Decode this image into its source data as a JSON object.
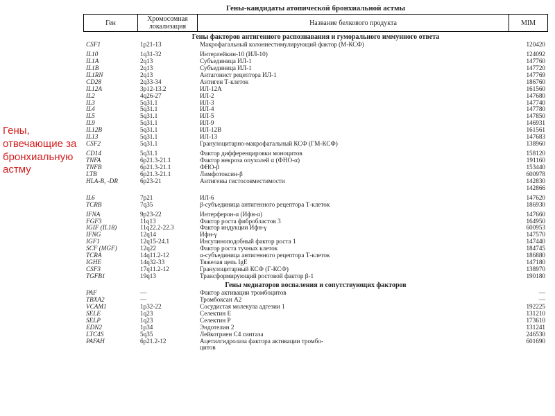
{
  "sideLabel": "Гены, отвечающие за бронхиальную астму",
  "title": "Гены-кандидаты атопической бронхиальной астмы",
  "headers": {
    "gene": "Ген",
    "loc": "Хромосомная локализация",
    "prod": "Название белкового продукта",
    "mim": "MIM"
  },
  "sections": [
    {
      "title": "Гены факторов антигенного распознавания и гуморального иммунного ответа",
      "groups": [
        [
          {
            "gene": "CSF1",
            "loc": "1p21-13",
            "prod": "Макрофагальный колониестимулирующий фактор (М-КСФ)",
            "mim": "120420"
          }
        ],
        [
          {
            "gene": "IL10",
            "loc": "1q31-32",
            "prod": "Интерлейкин-10 (ИЛ-10)",
            "mim": "124092"
          },
          {
            "gene": "IL1A",
            "loc": "2q13",
            "prod": "Субъединица ИЛ-1",
            "mim": "147760"
          },
          {
            "gene": "IL1B",
            "loc": "2q13",
            "prod": "Субъединица ИЛ-1",
            "mim": "147720"
          },
          {
            "gene": "IL1RN",
            "loc": "2q13",
            "prod": "Антагонист рецептора ИЛ-1",
            "mim": "147769"
          },
          {
            "gene": "CD28",
            "loc": "2q33-34",
            "prod": "Антиген Т-клеток",
            "mim": "186760"
          },
          {
            "gene": "IL12A",
            "loc": "3p12-13.2",
            "prod": "ИЛ-12А",
            "mim": "161560"
          },
          {
            "gene": "IL2",
            "loc": "4q26-27",
            "prod": "ИЛ-2",
            "mim": "147680"
          },
          {
            "gene": "IL3",
            "loc": "5q31.1",
            "prod": "ИЛ-3",
            "mim": "147740"
          },
          {
            "gene": "IL4",
            "loc": "5q31.1",
            "prod": "ИЛ-4",
            "mim": "147780"
          },
          {
            "gene": "IL5",
            "loc": "5q31.1",
            "prod": "ИЛ-5",
            "mim": "147850"
          },
          {
            "gene": "IL9",
            "loc": "5q31.1",
            "prod": "ИЛ-9",
            "mim": "146931"
          },
          {
            "gene": "IL12B",
            "loc": "5q31.1",
            "prod": "ИЛ-12В",
            "mim": "161561"
          },
          {
            "gene": "IL13",
            "loc": "5q31.1",
            "prod": "ИЛ-13",
            "mim": "147683"
          },
          {
            "gene": "CSF2",
            "loc": "5q31.1",
            "prod": "Гранулоцитарно-макрофагальный КСФ (ГМ-КСФ)",
            "mim": "138960"
          }
        ],
        [
          {
            "gene": "CD14",
            "loc": "5q31.1",
            "prod": "Фактор дифференцировки моноцитов",
            "mim": "158120"
          },
          {
            "gene": "TNFA",
            "loc": "6p21.3-21.1",
            "prod": "Фактор некроза опухолей α (ФНО-α)",
            "mim": "191160"
          },
          {
            "gene": "TNFB",
            "loc": "6p21.3-21.1",
            "prod": "ФНО-β",
            "mim": "153440"
          },
          {
            "gene": "LTB",
            "loc": "6p21.3-21.1",
            "prod": "Лимфотоксин-β",
            "mim": "600978"
          },
          {
            "gene": "HLA-B, -DR",
            "loc": "6p23-21",
            "prod": "Антигены гистосовместимости",
            "mim": "142830\n142866"
          }
        ],
        [
          {
            "gene": "IL6",
            "loc": "7p21",
            "prod": "ИЛ-6",
            "mim": "147620"
          },
          {
            "gene": "TCRB",
            "loc": "7q35",
            "prod": "β-субъединица антигенного рецептора Т-клеток",
            "mim": "186930"
          }
        ],
        [
          {
            "gene": "IFNA",
            "loc": "9p23-22",
            "prod": "Интерферон-α (Ифн-α)",
            "mim": "147660"
          },
          {
            "gene": "FGF3",
            "loc": "11q13",
            "prod": "Фактор роста фибробластов 3",
            "mim": "164950"
          },
          {
            "gene": "IGIF (IL18)",
            "loc": "11q22.2-22.3",
            "prod": "Фактор индукции Ифн-γ",
            "mim": "600953"
          },
          {
            "gene": "IFNG",
            "loc": "12q14",
            "prod": "Ифн-γ",
            "mim": "147570"
          },
          {
            "gene": "IGF1",
            "loc": "12q15-24.1",
            "prod": "Инсулиноподобный фактор роста 1",
            "mim": "147440"
          },
          {
            "gene": "SCF (MGF)",
            "loc": "12q22",
            "prod": "Фактор роста тучных клеток",
            "mim": "184745"
          },
          {
            "gene": "TCRA",
            "loc": "14q11.2-12",
            "prod": "α-субъединица антигенного рецептора Т-клеток",
            "mim": "186880"
          },
          {
            "gene": "IGHE",
            "loc": "14q32-33",
            "prod": "Тяжелая цепь IgE",
            "mim": "147180"
          },
          {
            "gene": "CSF3",
            "loc": "17q11.2-12",
            "prod": "Гранулоцитарный КСФ (Г-КСФ)",
            "mim": "138970"
          },
          {
            "gene": "TGFB1",
            "loc": "19q13",
            "prod": "Трансформирующий ростовой фактор β-1",
            "mim": "190180"
          }
        ]
      ]
    },
    {
      "title": "Гены медиаторов воспаления и сопутствующих факторов",
      "groups": [
        [
          {
            "gene": "PAF",
            "loc": "—",
            "prod": "Фактор активации тромбоцитов",
            "mim": "—"
          },
          {
            "gene": "TBXA2",
            "loc": "—",
            "prod": "Тромбоксан А2",
            "mim": "—"
          },
          {
            "gene": "VCAM1",
            "loc": "1p32-22",
            "prod": "Сосудистая молекула адгезии 1",
            "mim": "192225"
          },
          {
            "gene": "SELE",
            "loc": "1q23",
            "prod": "Селектин Е",
            "mim": "131210"
          },
          {
            "gene": "SELP",
            "loc": "1q23",
            "prod": "Селектин Р",
            "mim": "173610"
          },
          {
            "gene": "EDN2",
            "loc": "1p34",
            "prod": "Эндотелин 2",
            "mim": "131241"
          },
          {
            "gene": "LTC4S",
            "loc": "5q35",
            "prod": "Лейкотриен С4 синтаза",
            "mim": "246530"
          },
          {
            "gene": "PAFAH",
            "loc": "6p21.2-12",
            "prod": "Ацетилгидролаза фактора активации тромбо-\nцитов",
            "mim": "601690"
          }
        ]
      ]
    }
  ]
}
